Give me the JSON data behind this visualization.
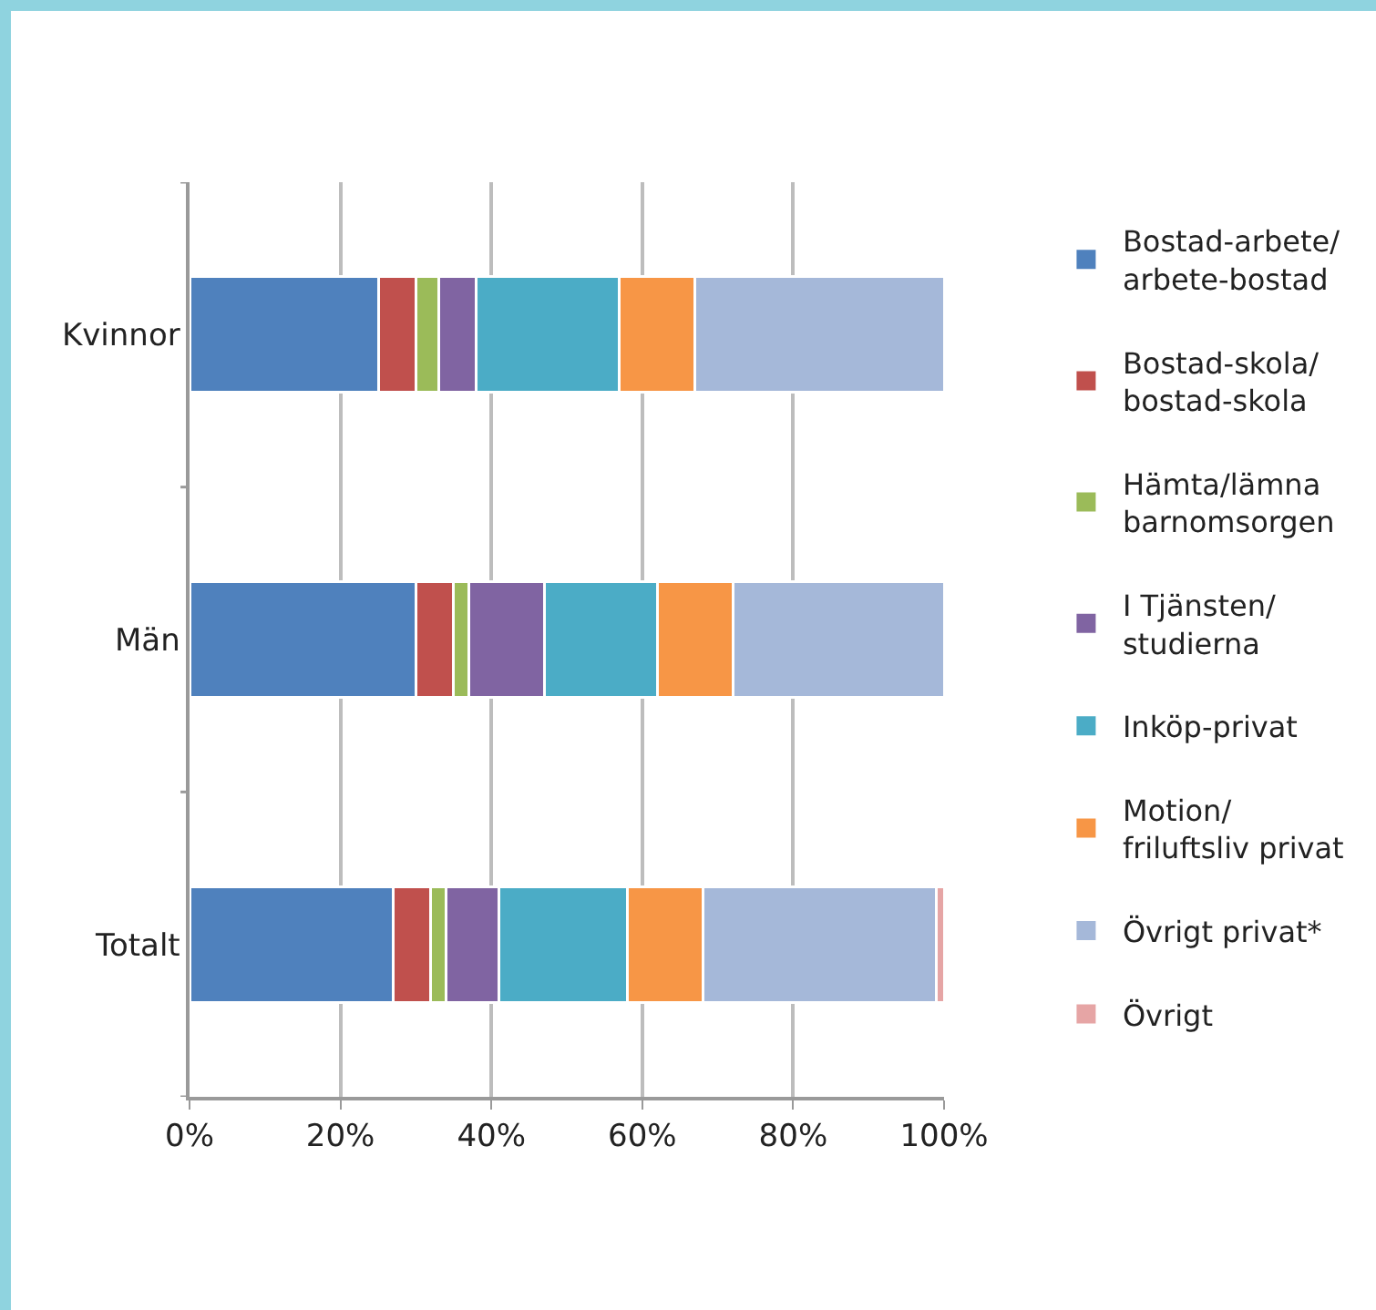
{
  "chart_data": {
    "type": "bar",
    "orientation": "horizontal",
    "stacked": true,
    "categories": [
      "Kvinnor",
      "Män",
      "Totalt"
    ],
    "series": [
      {
        "name": "Bostad-arbete/\narbete-bostad",
        "color": "#4f81bd",
        "values": [
          25,
          30,
          27
        ]
      },
      {
        "name": "Bostad-skola/\nbostad-skola",
        "color": "#c0504d",
        "values": [
          5,
          5,
          5
        ]
      },
      {
        "name": "Hämta/lämna\nbarnomsorgen",
        "color": "#9bbb59",
        "values": [
          3,
          2,
          2
        ]
      },
      {
        "name": "I Tjänsten/\nstudierna",
        "color": "#8064a2",
        "values": [
          5,
          10,
          7
        ]
      },
      {
        "name": "Inköp-privat",
        "color": "#4bacc6",
        "values": [
          19,
          15,
          17
        ]
      },
      {
        "name": "Motion/\nfriluftsliv privat",
        "color": "#f79646",
        "values": [
          10,
          10,
          10
        ]
      },
      {
        "name": "Övrigt privat*",
        "color": "#a5b8d9",
        "values": [
          33,
          28,
          31
        ]
      },
      {
        "name": "Övrigt",
        "color": "#e6a5a5",
        "values": [
          null,
          null,
          1
        ]
      }
    ],
    "xlim": [
      0,
      100
    ],
    "xticks": [
      {
        "value": 0,
        "label": "0%"
      },
      {
        "value": 20,
        "label": "20%"
      },
      {
        "value": 40,
        "label": "40%"
      },
      {
        "value": 60,
        "label": "60%"
      },
      {
        "value": 80,
        "label": "80%"
      },
      {
        "value": 100,
        "label": "100%"
      }
    ],
    "grid": "x",
    "legend": "right"
  }
}
